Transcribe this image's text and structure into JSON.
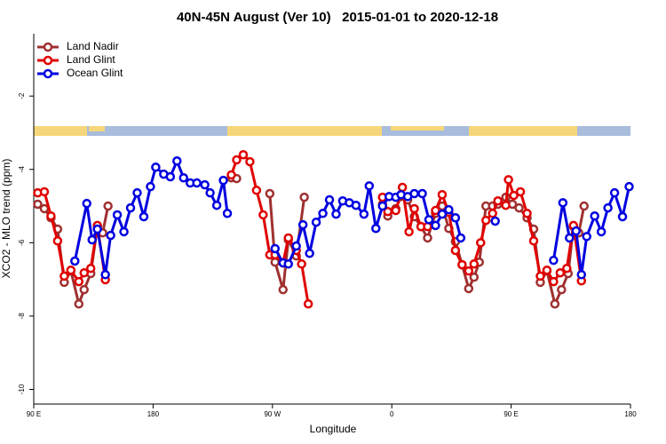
{
  "chart_data": {
    "type": "line",
    "title": "40N-45N August (Ver 10)   2015-01-01 to 2020-12-18",
    "x_label": "Longitude",
    "y_label": "XCO2 - MLO trend (ppm)",
    "xlim": [
      90,
      540
    ],
    "ylim": [
      -10.4,
      -0.3
    ],
    "xticks": [
      {
        "value": 90,
        "label": "90 E"
      },
      {
        "value": 180,
        "label": "180"
      },
      {
        "value": 270,
        "label": "90 W"
      },
      {
        "value": 360,
        "label": "0"
      },
      {
        "value": 450,
        "label": "90 E"
      },
      {
        "value": 540,
        "label": "180"
      }
    ],
    "yticks": [
      -2,
      -4,
      -6,
      -8,
      -10
    ],
    "legend": "upper left",
    "series": [
      {
        "name": "Land Nadir",
        "color": "#a03030",
        "x": [
          93,
          98,
          103,
          108,
          113,
          118,
          124,
          128,
          133,
          138,
          142,
          146,
          null,
          239,
          243,
          null,
          268,
          272,
          278,
          282,
          288,
          294,
          null,
          353,
          357,
          363,
          367,
          372,
          377,
          382,
          387,
          393,
          398,
          403,
          408,
          413,
          418,
          422,
          426,
          431,
          436,
          440,
          446,
          451,
          456,
          462,
          467,
          472,
          477,
          483,
          488,
          493,
          497,
          501,
          505
        ],
        "values": [
          -4.95,
          -5.07,
          -5.32,
          -5.63,
          -7.08,
          -6.77,
          -7.67,
          -7.28,
          -6.84,
          -5.56,
          -5.73,
          -5.0,
          null,
          -4.23,
          -4.25,
          null,
          -4.66,
          -6.53,
          -7.28,
          -5.92,
          -6.36,
          -4.76,
          null,
          -4.95,
          -5.27,
          -5.07,
          -4.74,
          -4.83,
          -5.29,
          -5.56,
          -5.87,
          -5.2,
          -5.0,
          -5.61,
          -5.97,
          -6.6,
          -7.25,
          -6.94,
          -6.53,
          -5.0,
          -5.0,
          -4.95,
          -4.76,
          -4.95,
          -5.05,
          -5.32,
          -5.63,
          -7.08,
          -6.77,
          -7.67,
          -7.28,
          -6.84,
          -5.56,
          -5.73,
          -5.0
        ]
      },
      {
        "name": "Land Glint",
        "color": "#e00000",
        "x": [
          93,
          98,
          103,
          108,
          113,
          118,
          124,
          128,
          133,
          138,
          144,
          null,
          239,
          243,
          248,
          253,
          258,
          263,
          268,
          272,
          278,
          282,
          288,
          292,
          297,
          null,
          353,
          357,
          363,
          368,
          373,
          377,
          382,
          387,
          393,
          398,
          403,
          408,
          413,
          418,
          422,
          427,
          431,
          436,
          440,
          446,
          448,
          452,
          457,
          462,
          467,
          472,
          477,
          482,
          487,
          492,
          497,
          503
        ],
        "values": [
          -4.64,
          -4.61,
          -5.27,
          -5.95,
          -6.91,
          -6.75,
          -7.06,
          -6.82,
          -6.7,
          -5.53,
          -7.01,
          null,
          -4.15,
          -3.74,
          -3.6,
          -3.79,
          -4.57,
          -5.24,
          -6.33,
          -6.33,
          -6.55,
          -5.87,
          -6.21,
          -6.58,
          -7.67,
          null,
          -4.76,
          -5.15,
          -5.12,
          -4.49,
          -5.7,
          -5.07,
          -5.56,
          -5.56,
          -5.12,
          -4.69,
          -5.17,
          -6.21,
          -6.6,
          -6.77,
          -6.58,
          -6.0,
          -5.39,
          -5.2,
          -4.86,
          -4.98,
          -4.28,
          -4.71,
          -4.61,
          -5.2,
          -5.95,
          -6.91,
          -6.75,
          -7.06,
          -6.82,
          -6.7,
          -5.53,
          -7.04
        ]
      },
      {
        "name": "Ocean Glint",
        "color": "#0000e0",
        "x": [
          121,
          130,
          134,
          138,
          144,
          148,
          153,
          158,
          163,
          168,
          173,
          178,
          182,
          188,
          193,
          198,
          203,
          208,
          213,
          219,
          223,
          228,
          233,
          236,
          null,
          272,
          278,
          282,
          288,
          293,
          298,
          303,
          308,
          313,
          318,
          323,
          328,
          333,
          339,
          343,
          348,
          353,
          358,
          363,
          367,
          372,
          377,
          383,
          388,
          393,
          398,
          403,
          408,
          412,
          null,
          438,
          null,
          482,
          489,
          494,
          499,
          503,
          507,
          513,
          518,
          523,
          528,
          534,
          539
        ],
        "values": [
          -6.5,
          -4.93,
          -5.92,
          -5.63,
          -6.87,
          -5.8,
          -5.24,
          -5.7,
          -5.05,
          -4.64,
          -5.29,
          -4.47,
          -3.94,
          -4.13,
          -4.2,
          -3.77,
          -4.23,
          -4.37,
          -4.37,
          -4.42,
          -4.64,
          -4.98,
          -4.3,
          -5.2,
          null,
          -6.16,
          -6.55,
          -6.58,
          -6.09,
          -5.51,
          -6.29,
          -5.44,
          -5.2,
          -4.83,
          -5.22,
          -4.86,
          -4.91,
          -4.98,
          -5.22,
          -4.45,
          -5.61,
          -5.0,
          -4.74,
          -4.76,
          -4.69,
          -4.74,
          -4.66,
          -4.66,
          -5.37,
          -5.53,
          -5.22,
          -5.1,
          -5.32,
          -5.87,
          null,
          -5.41,
          null,
          -6.48,
          -4.91,
          -5.87,
          -5.68,
          -6.87,
          -5.83,
          -5.27,
          -5.7,
          -5.05,
          -4.64,
          -5.29,
          -4.47
        ]
      }
    ]
  }
}
